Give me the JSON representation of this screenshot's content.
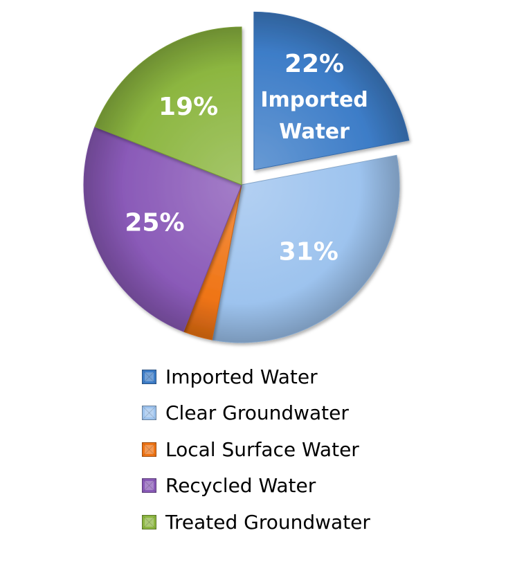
{
  "chart_data": {
    "type": "pie",
    "title": "",
    "categories": [
      "Imported Water",
      "Clear Groundwater",
      "Local Surface Water",
      "Recycled Water",
      "Treated Groundwater"
    ],
    "values": [
      22,
      31,
      3,
      25,
      19
    ],
    "data_labels": [
      "22%",
      "31%",
      "",
      "25%",
      "19%"
    ],
    "slice_name_labels": [
      [
        "Imported",
        "Water"
      ],
      [],
      [],
      [],
      []
    ],
    "exploded": [
      true,
      false,
      false,
      false,
      false
    ],
    "colors": [
      "#3d7dc8",
      "#9dc3ee",
      "#ef7415",
      "#8a5ab8",
      "#8cb640"
    ],
    "legend_position": "bottom"
  },
  "legend": {
    "items": [
      {
        "label": "Imported Water",
        "color": "#3d7dc8"
      },
      {
        "label": "Clear Groundwater",
        "color": "#9dc3ee"
      },
      {
        "label": "Local Surface Water",
        "color": "#ef7415"
      },
      {
        "label": "Recycled Water",
        "color": "#8a5ab8"
      },
      {
        "label": "Treated Groundwater",
        "color": "#8cb640"
      }
    ]
  }
}
